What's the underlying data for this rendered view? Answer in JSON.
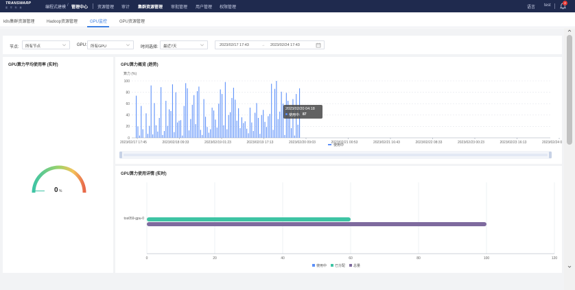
{
  "topnav": {
    "logo_main": "TRANSWARP",
    "logo_sub": "星 环 科 技",
    "breadcrumb_parent": "编程式建模",
    "breadcrumb_current": "管理中心",
    "items": [
      "资源管理",
      "审计",
      "集群资源管理",
      "审批管理",
      "用户管理",
      "权限管理"
    ],
    "active_item": "集群资源管理",
    "language": "语言",
    "user": "test",
    "notification_count": "2"
  },
  "subtabs": {
    "items": [
      "k8s集群资源管理",
      "Hadoop资源管理",
      "GPU监控",
      "GPU资源管理"
    ],
    "active": "GPU监控"
  },
  "filters": {
    "node_label": "节点:",
    "node_value": "所有节点",
    "gpu_label": "GPU:",
    "gpu_value": "所有GPU",
    "time_label": "时间选择:",
    "time_value": "最近7天",
    "date_start": "2023/02/17 17:43",
    "date_sep": "→",
    "date_end": "2023/02/24 17:43"
  },
  "gauge_panel": {
    "title": "GPU算力平均使用率 (实时)",
    "value": "0",
    "unit": "%",
    "value_fraction": 0
  },
  "trend_panel": {
    "title": "GPU算力概览 (趋势)",
    "tooltip_time": "2023/02/20 04:18",
    "tooltip_label": "使用中:",
    "tooltip_value": "87",
    "legend": "使用中"
  },
  "detail_panel": {
    "title": "GPU算力使用详情 (实时)",
    "legend": [
      "使用中",
      "已分配",
      "总量"
    ]
  },
  "chart_data": [
    {
      "type": "bar",
      "title": "GPU算力概览 (趋势)",
      "ylabel": "算力 (%)",
      "ylim": [
        0,
        100
      ],
      "y_ticks": [
        "0",
        "20",
        "40",
        "60",
        "80",
        "100"
      ],
      "x_ticks": [
        "2023/02/17 17:45",
        "2023/02/18 09:33",
        "2023/02/19 01:23",
        "2023/02/19 17:13",
        "2023/02/20 09:03",
        "2023/02/21 00:53",
        "2023/02/21 16:43",
        "2023/02/22 08:33",
        "2023/02/23 00:23",
        "2023/02/23 16:13",
        "2023/02/24 08:03"
      ],
      "grid": true,
      "legend_position": "bottom",
      "series": [
        {
          "name": "使用中",
          "color": "#5b8ff9",
          "values": [
            74,
            20,
            4,
            56,
            15,
            0,
            43,
            7,
            21,
            92,
            6,
            61,
            22,
            11,
            35,
            89,
            5,
            12,
            65,
            21,
            50,
            47,
            94,
            10,
            80,
            27,
            30,
            31,
            4,
            56,
            96,
            87,
            13,
            33,
            58,
            75,
            24,
            82,
            90,
            14,
            5,
            68,
            37,
            19,
            9,
            15,
            53,
            48,
            32,
            18,
            60,
            85,
            77,
            22,
            98,
            15,
            40,
            45,
            70,
            88,
            67,
            30,
            52,
            17,
            36,
            26,
            29,
            16,
            8,
            53,
            27,
            12,
            44,
            61,
            35,
            7,
            40,
            49,
            28,
            19,
            38,
            42,
            95,
            14,
            86,
            100,
            33,
            46,
            81,
            60,
            5,
            79,
            65,
            50,
            17,
            68,
            4,
            77,
            23,
            87
          ]
        }
      ]
    },
    {
      "type": "bar",
      "title": "GPU算力使用详情 (实时)",
      "orientation": "horizontal",
      "categories": [
        "tos059-gpu-0"
      ],
      "xlim": [
        0,
        120
      ],
      "x_ticks": [
        "0",
        "20",
        "40",
        "60",
        "80",
        "100",
        "120"
      ],
      "legend_position": "bottom",
      "series": [
        {
          "name": "使用中",
          "color": "#5b8ff9",
          "values": [
            0
          ]
        },
        {
          "name": "已分配",
          "color": "#3ec4a4",
          "values": [
            60
          ]
        },
        {
          "name": "总量",
          "color": "#7e6a9e",
          "values": [
            100
          ]
        }
      ]
    }
  ]
}
